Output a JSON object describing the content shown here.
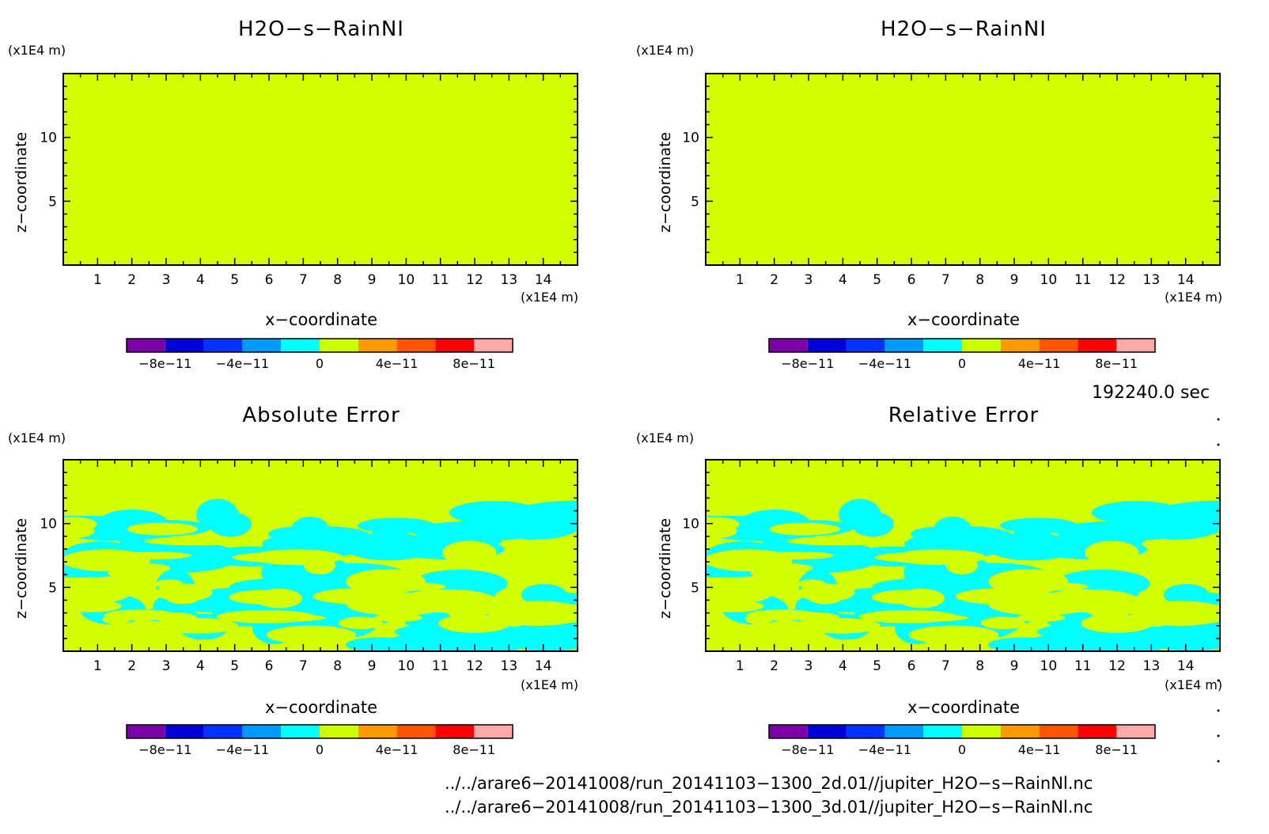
{
  "colors": {
    "field": "#d4ff00",
    "anomaly": "#00ffff",
    "frame": "#000000",
    "colorbar": [
      "#7b00a8",
      "#0000d6",
      "#0033ff",
      "#0099ff",
      "#00ffff",
      "#ccff00",
      "#ff9900",
      "#ff5500",
      "#ff0000",
      "#ffaaaa"
    ]
  },
  "panels": [
    {
      "title": "H2O−s−RainNI",
      "zunit": "(x1E4 m)",
      "xunit": "(x1E4 m)",
      "xlabel": "x−coordinate",
      "zlabel": "z−coordinate"
    },
    {
      "title": "H2O−s−RainNI",
      "zunit": "(x1E4 m)",
      "xunit": "(x1E4 m)",
      "xlabel": "x−coordinate",
      "zlabel": "z−coordinate"
    },
    {
      "title": "Absolute Error",
      "zunit": "(x1E4 m)",
      "xunit": "(x1E4 m)",
      "xlabel": "x−coordinate",
      "zlabel": "z−coordinate"
    },
    {
      "title": "Relative Error",
      "zunit": "(x1E4 m)",
      "xunit": "(x1E4 m)",
      "xlabel": "x−coordinate",
      "zlabel": "z−coordinate"
    }
  ],
  "time_label": "192240.0 sec",
  "files": [
    "../../arare6−20141008/run_20141103−1300_2d.01//jupiter_H2O−s−RainNl.nc",
    "../../arare6−20141008/run_20141103−1300_3d.01//jupiter_H2O−s−RainNl.nc"
  ],
  "chart_data": [
    {
      "type": "heatmap",
      "title": "H2O−s−RainNI",
      "xlabel": "x−coordinate",
      "ylabel": "z−coordinate",
      "x_unit": "(x1E4 m)",
      "y_unit": "(x1E4 m)",
      "xlim": [
        0,
        15
      ],
      "ylim": [
        0,
        15
      ],
      "xticks": [
        1,
        2,
        3,
        4,
        5,
        6,
        7,
        8,
        9,
        10,
        11,
        12,
        13,
        14
      ],
      "yticks": [
        5,
        10
      ],
      "colorbar_ticks": [
        "−8e−11",
        "−4e−11",
        "0",
        "4e−11",
        "8e−11"
      ],
      "colorbar_range": [
        -1e-10,
        1e-10
      ],
      "field_value": "uniform (0 to 2e−11 band)"
    },
    {
      "type": "heatmap",
      "title": "H2O−s−RainNI",
      "xlabel": "x−coordinate",
      "ylabel": "z−coordinate",
      "x_unit": "(x1E4 m)",
      "y_unit": "(x1E4 m)",
      "xlim": [
        0,
        15
      ],
      "ylim": [
        0,
        15
      ],
      "xticks": [
        1,
        2,
        3,
        4,
        5,
        6,
        7,
        8,
        9,
        10,
        11,
        12,
        13,
        14
      ],
      "yticks": [
        5,
        10
      ],
      "colorbar_ticks": [
        "−8e−11",
        "−4e−11",
        "0",
        "4e−11",
        "8e−11"
      ],
      "colorbar_range": [
        -1e-10,
        1e-10
      ],
      "field_value": "uniform (0 to 2e−11 band)"
    },
    {
      "type": "heatmap",
      "title": "Absolute Error",
      "xlabel": "x−coordinate",
      "ylabel": "z−coordinate",
      "x_unit": "(x1E4 m)",
      "y_unit": "(x1E4 m)",
      "xlim": [
        0,
        15
      ],
      "ylim": [
        0,
        15
      ],
      "xticks": [
        1,
        2,
        3,
        4,
        5,
        6,
        7,
        8,
        9,
        10,
        11,
        12,
        13,
        14
      ],
      "yticks": [
        5,
        10
      ],
      "colorbar_ticks": [
        "−8e−11",
        "−4e−11",
        "0",
        "4e−11",
        "8e−11"
      ],
      "colorbar_range": [
        -1e-10,
        1e-10
      ],
      "field_value": "mix of (0 to 2e−11) and (−2e−11 to 0) patches below z≈11"
    },
    {
      "type": "heatmap",
      "title": "Relative Error",
      "xlabel": "x−coordinate",
      "ylabel": "z−coordinate",
      "x_unit": "(x1E4 m)",
      "y_unit": "(x1E4 m)",
      "xlim": [
        0,
        15
      ],
      "ylim": [
        0,
        15
      ],
      "xticks": [
        1,
        2,
        3,
        4,
        5,
        6,
        7,
        8,
        9,
        10,
        11,
        12,
        13,
        14
      ],
      "yticks": [
        5,
        10
      ],
      "colorbar_ticks": [
        "−8e−11",
        "−4e−11",
        "0",
        "4e−11",
        "8e−11"
      ],
      "colorbar_range": [
        -1e-10,
        1e-10
      ],
      "field_value": "mix of (0 to 2e−11) and (−2e−11 to 0) patches below z≈11"
    }
  ]
}
